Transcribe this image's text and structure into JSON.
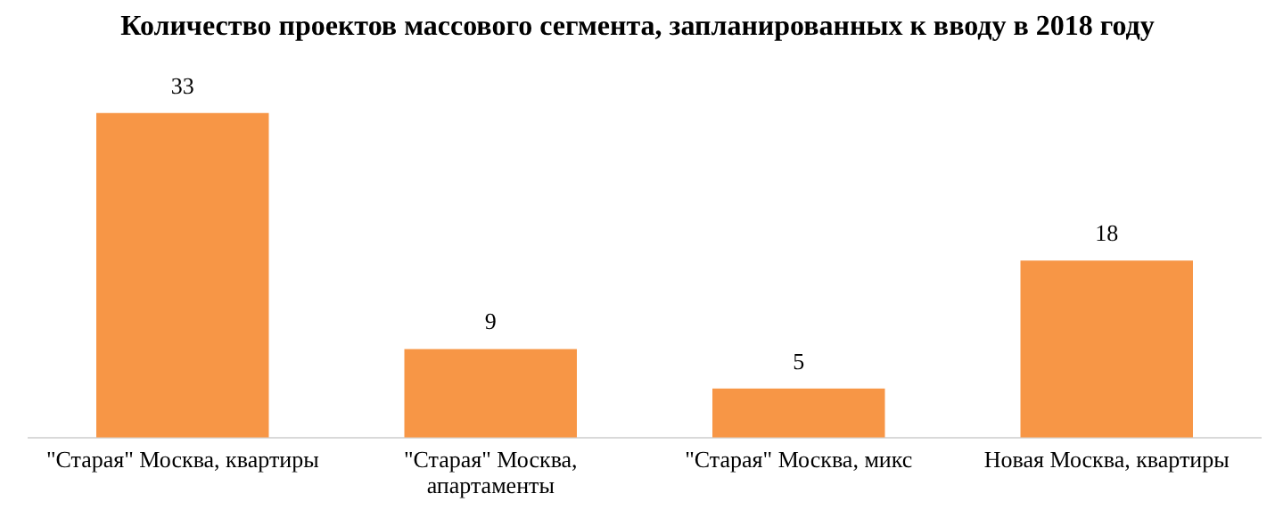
{
  "chart_data": {
    "type": "bar",
    "title": "Количество проектов массового сегмента, запланированных к вводу в 2018 году",
    "categories": [
      "\"Старая\" Москва, квартиры",
      "\"Старая\" Москва, апартаменты",
      "\"Старая\" Москва, микс",
      "Новая Москва, квартиры"
    ],
    "values": [
      33,
      9,
      5,
      18
    ],
    "color": "#f79646",
    "data_labels": true,
    "grid": false,
    "legend": false
  }
}
